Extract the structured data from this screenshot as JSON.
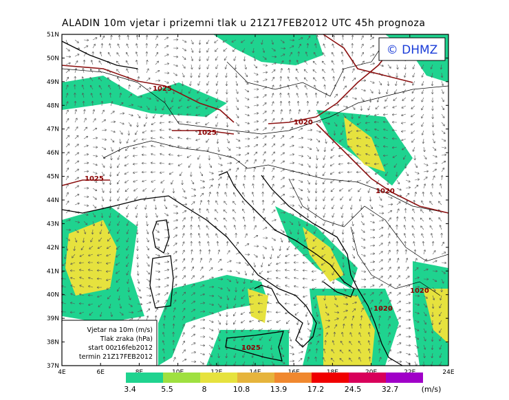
{
  "title": "ALADIN 10m vjetar i prizemni tlak u 21Z17FEB2012 UTC 45h prognoza",
  "copyright": "© DHMZ",
  "lat_labels": [
    "51N",
    "50N",
    "49N",
    "48N",
    "47N",
    "46N",
    "45N",
    "44N",
    "43N",
    "42N",
    "41N",
    "40N",
    "39N",
    "38N",
    "37N"
  ],
  "lon_labels": [
    "4E",
    "6E",
    "8E",
    "10E",
    "12E",
    "14E",
    "16E",
    "18E",
    "20E",
    "22E",
    "24E"
  ],
  "isobar_labels": [
    "1025",
    "1025",
    "1025",
    "1020",
    "1020",
    "1020",
    "1020",
    "1025"
  ],
  "info_box": [
    "Vjetar na 10m (m/s)",
    "Tlak zraka (hPa)",
    "start 00z16feb2012",
    "termin 21Z17FEB2012"
  ],
  "colorbar": {
    "levels": [
      3.4,
      5.5,
      8,
      10.8,
      13.9,
      17.2,
      24.5,
      32.7
    ],
    "colors": [
      "#1fd38f",
      "#9fe040",
      "#e6e23e",
      "#e6b43c",
      "#f0882e",
      "#f00000",
      "#d8005a",
      "#a000c8"
    ],
    "unit": "(m/s)"
  }
}
